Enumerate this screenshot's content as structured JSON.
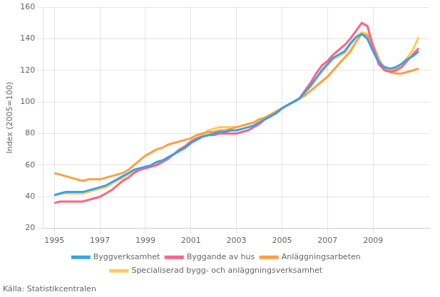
{
  "chart_data": {
    "type": "line",
    "ylabel": "Index (2005=100)",
    "source": "Källa: Statistikcentralen",
    "xlim": [
      1994.5,
      2011.5
    ],
    "ylim": [
      20,
      160
    ],
    "xticks": [
      1995,
      1997,
      1999,
      2001,
      2003,
      2005,
      2007,
      2009
    ],
    "yticks": [
      20,
      40,
      60,
      80,
      100,
      120,
      140,
      160
    ],
    "grid": true,
    "legend": "bottom",
    "x": [
      1995.0,
      1995.25,
      1995.5,
      1995.75,
      1996.0,
      1996.25,
      1996.5,
      1996.75,
      1997.0,
      1997.25,
      1997.5,
      1997.75,
      1998.0,
      1998.25,
      1998.5,
      1998.75,
      1999.0,
      1999.25,
      1999.5,
      1999.75,
      2000.0,
      2000.25,
      2000.5,
      2000.75,
      2001.0,
      2001.25,
      2001.5,
      2001.75,
      2002.0,
      2002.25,
      2002.5,
      2002.75,
      2003.0,
      2003.25,
      2003.5,
      2003.75,
      2004.0,
      2004.25,
      2004.5,
      2004.75,
      2005.0,
      2005.25,
      2005.5,
      2005.75,
      2006.0,
      2006.25,
      2006.5,
      2006.75,
      2007.0,
      2007.25,
      2007.5,
      2007.75,
      2008.0,
      2008.25,
      2008.5,
      2008.75,
      2009.0,
      2009.25,
      2009.5,
      2009.75,
      2010.0,
      2010.25,
      2010.5,
      2010.75,
      2011.0
    ],
    "series": [
      {
        "name": "Byggverksamhet",
        "values": [
          41,
          42,
          43,
          43,
          43,
          43,
          44,
          45,
          46,
          47,
          49,
          51,
          53,
          55,
          57,
          58,
          59,
          60,
          62,
          63,
          65,
          67,
          69,
          71,
          74,
          76,
          78,
          79,
          80,
          81,
          81,
          82,
          82,
          83,
          84,
          85,
          87,
          89,
          91,
          93,
          96,
          98,
          100,
          102,
          106,
          110,
          115,
          120,
          124,
          128,
          130,
          132,
          137,
          141,
          143,
          140,
          132,
          125,
          122,
          121,
          122,
          124,
          127,
          129,
          132
        ]
      },
      {
        "name": "Byggande av hus",
        "values": [
          36,
          37,
          37,
          37,
          37,
          37,
          38,
          39,
          40,
          42,
          44,
          47,
          50,
          52,
          55,
          57,
          58,
          59,
          60,
          62,
          64,
          67,
          70,
          72,
          75,
          77,
          78,
          79,
          79,
          80,
          80,
          80,
          80,
          81,
          82,
          84,
          86,
          89,
          91,
          93,
          96,
          98,
          100,
          102,
          107,
          112,
          118,
          123,
          126,
          130,
          133,
          136,
          140,
          145,
          150,
          148,
          135,
          124,
          120,
          119,
          120,
          122,
          126,
          130,
          134
        ]
      },
      {
        "name": "Anläggningsarbeten",
        "values": [
          55,
          54,
          53,
          52,
          51,
          50,
          51,
          51,
          51,
          52,
          53,
          54,
          55,
          57,
          60,
          63,
          66,
          68,
          70,
          71,
          73,
          74,
          75,
          76,
          77,
          79,
          80,
          81,
          81,
          82,
          82,
          83,
          84,
          85,
          86,
          87,
          89,
          90,
          92,
          94,
          96,
          98,
          100,
          102,
          104,
          107,
          110,
          113,
          116,
          120,
          124,
          128,
          132,
          138,
          143,
          142,
          136,
          127,
          121,
          119,
          118,
          118,
          119,
          120,
          121
        ]
      },
      {
        "name": "Specialiserad bygg- och anläggningsverksamhet",
        "values": [
          41,
          42,
          42,
          42,
          42,
          42,
          43,
          44,
          45,
          46,
          48,
          50,
          52,
          54,
          56,
          57,
          58,
          59,
          61,
          63,
          65,
          67,
          70,
          72,
          75,
          77,
          79,
          82,
          83,
          84,
          84,
          84,
          84,
          85,
          86,
          87,
          88,
          90,
          92,
          94,
          96,
          98,
          100,
          102,
          106,
          110,
          115,
          119,
          123,
          127,
          129,
          131,
          136,
          141,
          144,
          143,
          134,
          124,
          120,
          120,
          121,
          124,
          128,
          133,
          141
        ]
      }
    ]
  }
}
